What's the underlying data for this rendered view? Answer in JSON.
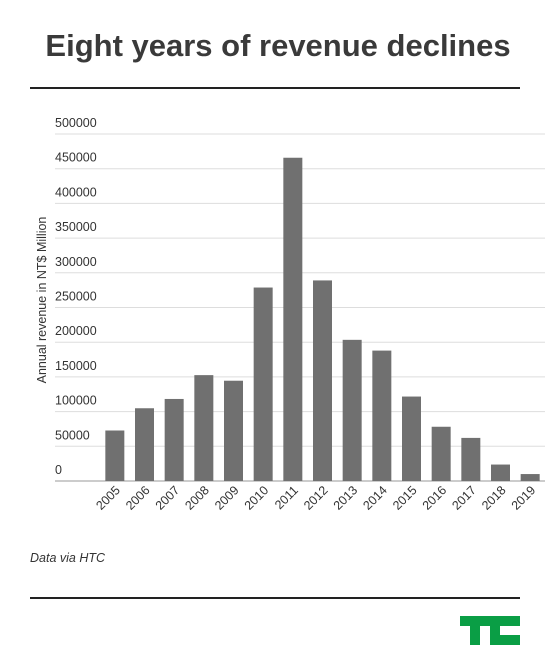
{
  "chart_data": {
    "type": "bar",
    "title": "Eight years of revenue declines",
    "y_label": "Annual revenue in NT$ Million",
    "categories": [
      "2005",
      "2006",
      "2007",
      "2008",
      "2009",
      "2010",
      "2011",
      "2012",
      "2013",
      "2014",
      "2015",
      "2016",
      "2017",
      "2018",
      "2019"
    ],
    "values": [
      72769,
      104816,
      118218,
      152558,
      144493,
      278761,
      465795,
      289020,
      203403,
      187911,
      121684,
      78161,
      62100,
      23700,
      10000
    ],
    "color": "#707070",
    "ylim": [
      0,
      500000
    ],
    "yticks": [
      0,
      50000,
      100000,
      150000,
      200000,
      250000,
      300000,
      350000,
      400000,
      450000,
      500000
    ],
    "grid": true,
    "source": "Data via HTC"
  }
}
